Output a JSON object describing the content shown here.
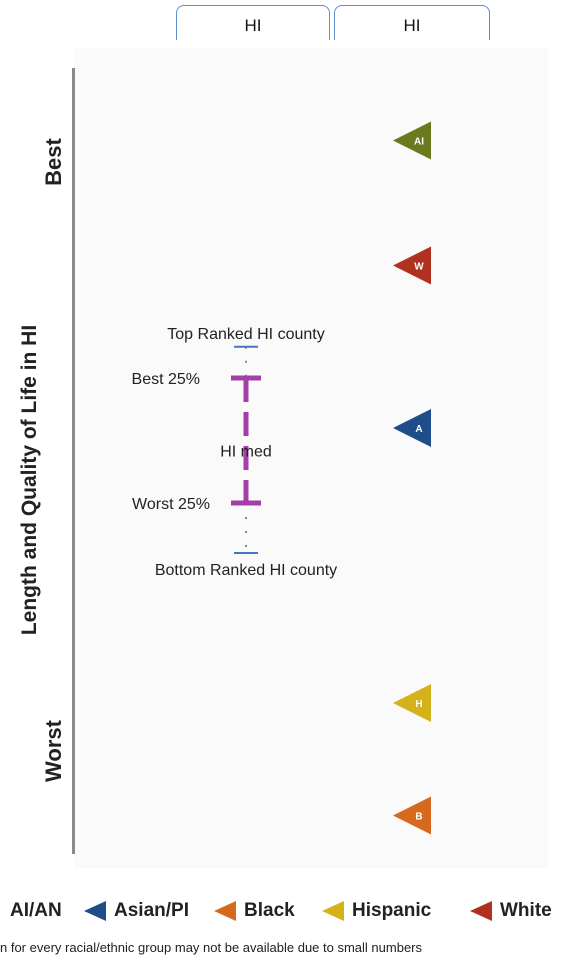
{
  "tabs": [
    {
      "label": "HI"
    },
    {
      "label": "HI"
    }
  ],
  "chart_data": {
    "type": "scatter",
    "ylabel": "Length and Quality of Life in HI",
    "y_top_label": "Best",
    "y_bottom_label": "Worst",
    "county_range": {
      "top_ranked_label": "Top Ranked HI county",
      "best25_label": "Best 25%",
      "median_label": "HI med",
      "worst25_label": "Worst 25%",
      "bottom_ranked_label": "Bottom Ranked HI county",
      "top_ranked_value": -1.05,
      "best25_value": -0.8,
      "median_value": -0.3,
      "worst25_value": 0.2,
      "bottom_ranked_value": 0.6
    },
    "series": [
      {
        "name": "AI/AN",
        "abbr": "AI",
        "value": -2.7,
        "color": "#6b7a1e"
      },
      {
        "name": "White",
        "abbr": "W",
        "value": -1.7,
        "color": "#b0311f"
      },
      {
        "name": "Asian/PI",
        "abbr": "A",
        "value": -0.4,
        "color": "#1d4e89"
      },
      {
        "name": "Hispanic",
        "abbr": "H",
        "value": 1.8,
        "color": "#d4b21a"
      },
      {
        "name": "Black",
        "abbr": "B",
        "value": 2.7,
        "color": "#d56a1e"
      }
    ],
    "legend_order": [
      "AI/AN",
      "Asian/PI",
      "Black",
      "Hispanic",
      "White"
    ],
    "colors": {
      "range_bar": "#a43ea8",
      "range_end": "#4a73c8",
      "range_dots": "#7a9a3a"
    }
  },
  "footnote": "n for every racial/ethnic group may not be available due to small numbers"
}
